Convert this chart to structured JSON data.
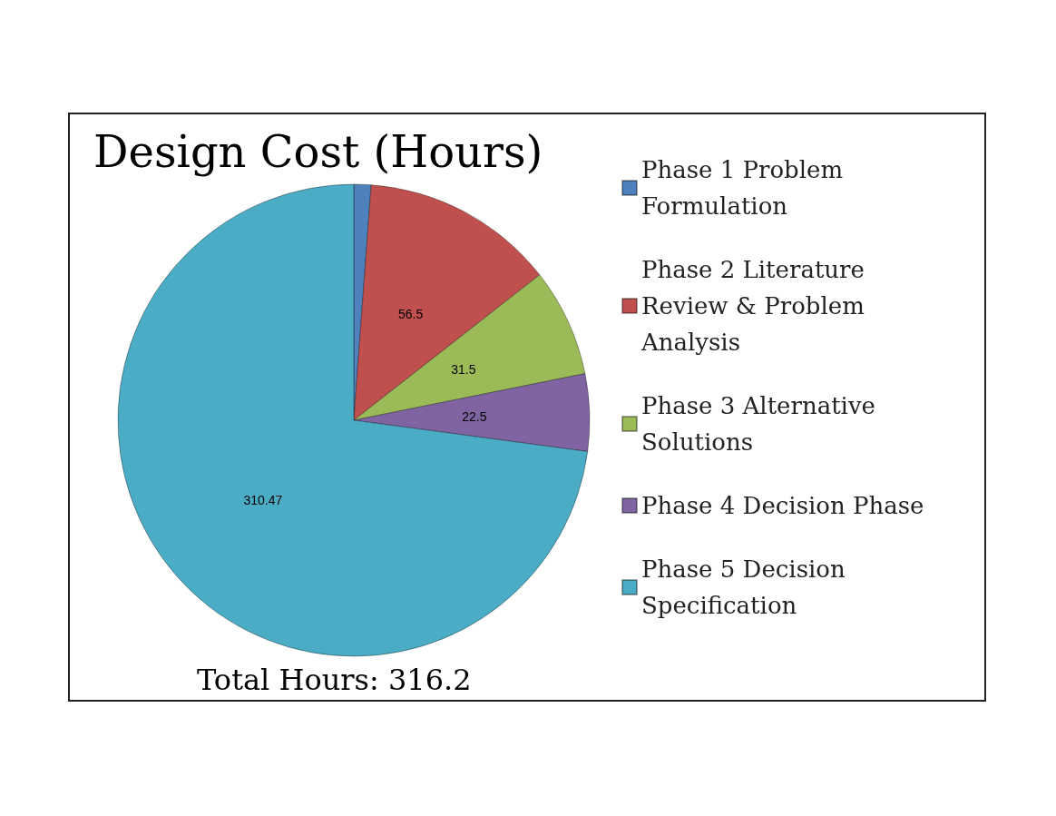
{
  "chart_data": {
    "type": "pie",
    "title": "Design Cost (Hours)",
    "categories": [
      "Phase 1 Problem Formulation",
      "Phase 2 Literature Review & Problem Analysis",
      "Phase 3 Alternative Solutions",
      "Phase 4 Decision Phase",
      "Phase 5 Decision Specification"
    ],
    "values": [
      5,
      56.5,
      31.5,
      22.5,
      310.47
    ],
    "value_labels": [
      null,
      "56.5",
      "31.5",
      "22.5",
      "310.47"
    ],
    "colors": [
      "#4f81bd",
      "#c0504d",
      "#9bbb59",
      "#8064a2",
      "#4bacc6"
    ],
    "legend": "right",
    "annotations": [
      "Total Hours: 316.2"
    ]
  }
}
